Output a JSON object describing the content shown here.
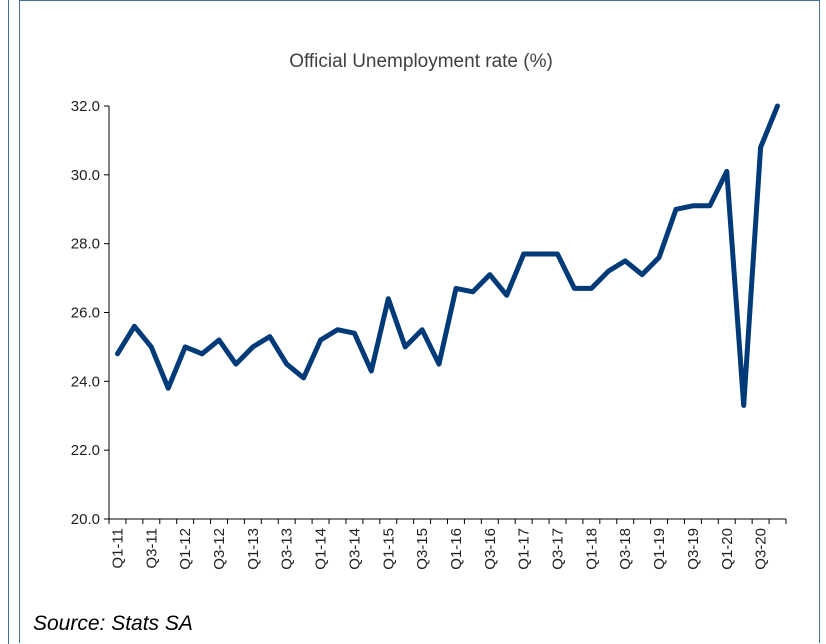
{
  "chart_data": {
    "type": "line",
    "title": "Official Unemployment rate (%)",
    "xlabel": "",
    "ylabel": "",
    "ylim": [
      20,
      32
    ],
    "yticks": [
      "20.0",
      "22.0",
      "24.0",
      "26.0",
      "28.0",
      "30.0",
      "32.0"
    ],
    "grid": false,
    "x": [
      "Q1-11",
      "Q2-11",
      "Q3-11",
      "Q4-11",
      "Q1-12",
      "Q2-12",
      "Q3-12",
      "Q4-12",
      "Q1-13",
      "Q2-13",
      "Q3-13",
      "Q4-13",
      "Q1-14",
      "Q2-14",
      "Q3-14",
      "Q4-14",
      "Q1-15",
      "Q2-15",
      "Q3-15",
      "Q4-15",
      "Q1-16",
      "Q2-16",
      "Q3-16",
      "Q4-16",
      "Q1-17",
      "Q2-17",
      "Q3-17",
      "Q4-17",
      "Q1-18",
      "Q2-18",
      "Q3-18",
      "Q4-18",
      "Q1-19",
      "Q2-19",
      "Q3-19",
      "Q4-19",
      "Q1-20",
      "Q2-20",
      "Q3-20",
      "Q4-20"
    ],
    "x_tick_labels": [
      "Q1-11",
      "Q3-11",
      "Q1-12",
      "Q3-12",
      "Q1-13",
      "Q3-13",
      "Q1-14",
      "Q3-14",
      "Q1-15",
      "Q3-15",
      "Q1-16",
      "Q3-16",
      "Q1-17",
      "Q3-17",
      "Q1-18",
      "Q3-18",
      "Q1-19",
      "Q3-19",
      "Q1-20",
      "Q3-20"
    ],
    "series": [
      {
        "values": [
          24.8,
          25.6,
          25.0,
          23.8,
          25.0,
          24.8,
          25.2,
          24.5,
          25.0,
          25.3,
          24.5,
          24.1,
          25.2,
          25.5,
          25.4,
          24.3,
          26.4,
          25.0,
          25.5,
          24.5,
          26.7,
          26.6,
          27.1,
          26.5,
          27.7,
          27.7,
          27.7,
          26.7,
          26.7,
          27.2,
          27.5,
          27.1,
          27.6,
          29.0,
          29.1,
          29.1,
          30.1,
          23.3,
          30.8,
          32.0
        ],
        "color": "#003a78"
      }
    ]
  },
  "source_note": "Source: Stats SA"
}
